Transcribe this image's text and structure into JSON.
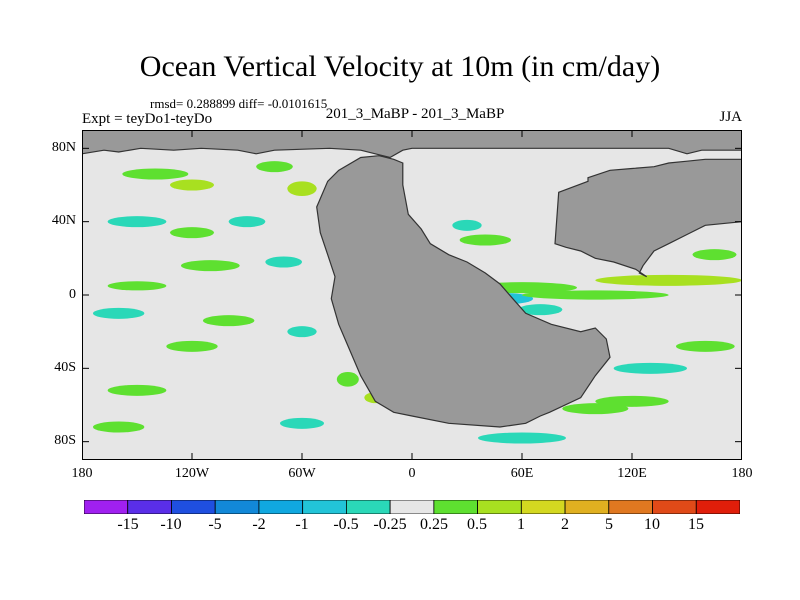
{
  "title": "Ocean Vertical Velocity at 10m (in cm/day)",
  "stats": "rmsd= 0.288899 diff= -0.0101615",
  "expt": "Expt = teyDo1-teyDo",
  "center_label": "201_3_MaBP - 201_3_MaBP",
  "season": "JJA",
  "chart_data": {
    "type": "heatmap",
    "title": "Ocean Vertical Velocity at 10m (in cm/day)",
    "xlabel": "",
    "ylabel": "",
    "xlim": [
      -180,
      180
    ],
    "ylim": [
      -90,
      90
    ],
    "x_ticks": [
      {
        "value": -180,
        "label": "180"
      },
      {
        "value": -120,
        "label": "120W"
      },
      {
        "value": -60,
        "label": "60W"
      },
      {
        "value": 0,
        "label": "0"
      },
      {
        "value": 60,
        "label": "60E"
      },
      {
        "value": 120,
        "label": "120E"
      },
      {
        "value": 180,
        "label": "180"
      }
    ],
    "y_ticks": [
      {
        "value": 80,
        "label": "80N"
      },
      {
        "value": 40,
        "label": "40N"
      },
      {
        "value": 0,
        "label": "0"
      },
      {
        "value": -40,
        "label": "40S"
      },
      {
        "value": -80,
        "label": "80S"
      }
    ],
    "colorbar": {
      "levels": [
        "-15",
        "-10",
        "-5",
        "-2",
        "-1",
        "-0.5",
        "-0.25",
        "0.25",
        "0.5",
        "1",
        "2",
        "5",
        "10",
        "15"
      ],
      "colors": [
        "#a020f0",
        "#5a2ee8",
        "#1f4fe0",
        "#1288d8",
        "#10a8e0",
        "#22c4d8",
        "#2ad8b8",
        "#e6e6e6",
        "#5ee030",
        "#a8e020",
        "#d4d820",
        "#e0b020",
        "#e07820",
        "#e04a18",
        "#e01e0a"
      ]
    },
    "land_color": "#999999",
    "ocean_neutral_color": "#e6e6e6",
    "land": [
      {
        "name": "north-polar-land",
        "lon": [
          -180,
          -180,
          -168,
          -160,
          -148,
          -130,
          -115,
          -95,
          -85,
          -75,
          -45,
          -28,
          -20,
          -12,
          -5,
          0,
          140,
          150,
          158,
          180,
          180
        ],
        "lat": [
          90,
          77,
          79,
          78,
          80,
          79,
          80,
          79,
          77,
          79,
          80,
          79,
          77,
          75,
          79,
          80,
          80,
          77,
          79,
          79,
          90
        ]
      },
      {
        "name": "central-continent",
        "lon": [
          -5,
          -10,
          -18,
          -28,
          -40,
          -46,
          -52,
          -50,
          -46,
          -42,
          -44,
          -40,
          -34,
          -28,
          -20,
          -10,
          0,
          20,
          48,
          62,
          70,
          75,
          92,
          100,
          108,
          106,
          100,
          92,
          76,
          62,
          55,
          48,
          40,
          30,
          20,
          10,
          5,
          -2,
          -5
        ],
        "lat": [
          72,
          74,
          76,
          75,
          68,
          62,
          48,
          34,
          22,
          10,
          -2,
          -16,
          -30,
          -44,
          -58,
          -64,
          -66,
          -70,
          -72,
          -70,
          -66,
          -64,
          -56,
          -44,
          -34,
          -24,
          -18,
          -20,
          -16,
          -10,
          -2,
          6,
          12,
          18,
          22,
          28,
          36,
          44,
          60
        ]
      },
      {
        "name": "northeast-land",
        "lon": [
          96,
          108,
          120,
          132,
          140,
          150,
          160,
          180,
          180,
          160,
          150,
          140,
          132,
          126,
          124,
          128,
          122,
          110,
          100,
          92,
          84,
          78,
          80,
          96
        ],
        "lat": [
          64,
          68,
          69,
          70,
          72,
          73,
          74,
          74,
          40,
          38,
          33,
          28,
          24,
          16,
          12,
          10,
          14,
          18,
          20,
          24,
          26,
          28,
          56,
          62
        ]
      }
    ]
  }
}
